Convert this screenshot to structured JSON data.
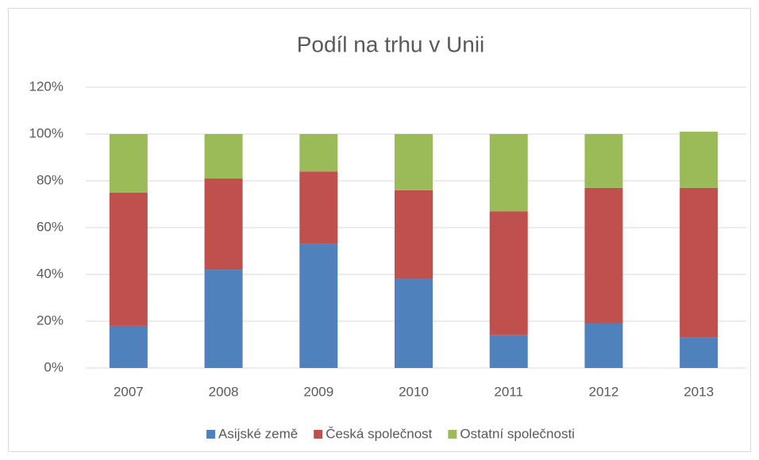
{
  "chart_data": {
    "type": "stacked_bar",
    "title": "Podíl na trhu v Unii",
    "categories": [
      "2007",
      "2008",
      "2009",
      "2010",
      "2011",
      "2012",
      "2013"
    ],
    "series": [
      {
        "name": "Asijské země",
        "color": "#4f81bd",
        "values": [
          18,
          42,
          53,
          38,
          14,
          19,
          13
        ]
      },
      {
        "name": "Česká společnost",
        "color": "#c0504d",
        "values": [
          57,
          39,
          31,
          38,
          53,
          58,
          64
        ]
      },
      {
        "name": "Ostatní společnosti",
        "color": "#9bbb59",
        "values": [
          25,
          19,
          16,
          24,
          33,
          23,
          24
        ]
      }
    ],
    "ylim": [
      0,
      120
    ],
    "yticks": [
      {
        "value": 0,
        "label": "0%"
      },
      {
        "value": 20,
        "label": "20%"
      },
      {
        "value": 40,
        "label": "40%"
      },
      {
        "value": 60,
        "label": "60%"
      },
      {
        "value": 80,
        "label": "80%"
      },
      {
        "value": 100,
        "label": "100%"
      },
      {
        "value": 120,
        "label": "120%"
      }
    ],
    "grid": true,
    "legend": "bottom"
  }
}
